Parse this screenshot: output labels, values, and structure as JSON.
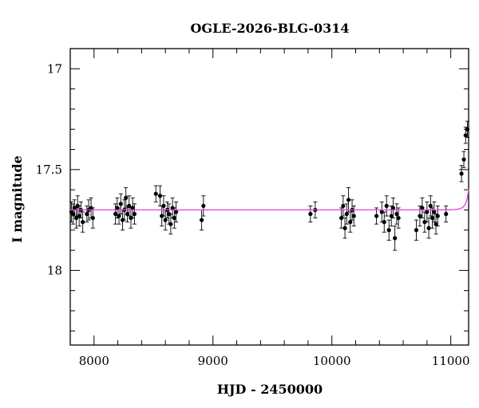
{
  "chart_data": {
    "type": "scatter",
    "title": "OGLE-2026-BLG-0314",
    "xlabel": "HJD - 2450000",
    "ylabel": "I magnitude",
    "xlim": [
      7800,
      11150
    ],
    "ylim": [
      18.37,
      16.9
    ],
    "y_inverted": true,
    "x_ticks": [
      8000,
      9000,
      10000,
      11000
    ],
    "x_tick_labels": [
      "8000",
      "9000",
      "10000",
      "11000"
    ],
    "y_ticks": [
      17,
      17.5,
      18
    ],
    "y_tick_labels": [
      "17",
      "17.5",
      "18"
    ],
    "grid": false,
    "colors": {
      "points": "#000000",
      "model": "#e040e0"
    },
    "series": [
      {
        "kind": "points_with_errorbars",
        "x": [
          7810,
          7825,
          7835,
          7850,
          7862,
          7875,
          7890,
          7905,
          7940,
          7955,
          7975,
          7990,
          8180,
          8195,
          8210,
          8225,
          8240,
          8255,
          8268,
          8280,
          8295,
          8310,
          8325,
          8340,
          8520,
          8555,
          8570,
          8585,
          8600,
          8615,
          8630,
          8645,
          8660,
          8675,
          8690,
          8905,
          8920,
          9820,
          9860,
          10080,
          10095,
          10110,
          10125,
          10140,
          10155,
          10170,
          10185,
          10375,
          10420,
          10440,
          10460,
          10480,
          10500,
          10515,
          10530,
          10545,
          10560,
          10710,
          10740,
          10760,
          10780,
          10800,
          10815,
          10830,
          10845,
          10860,
          10875,
          10890,
          10960,
          11090,
          11110,
          11125,
          11140
        ],
        "y": [
          17.71,
          17.72,
          17.69,
          17.74,
          17.68,
          17.73,
          17.7,
          17.76,
          17.72,
          17.7,
          17.69,
          17.74,
          17.72,
          17.69,
          17.73,
          17.67,
          17.75,
          17.7,
          17.64,
          17.72,
          17.68,
          17.74,
          17.69,
          17.72,
          17.62,
          17.63,
          17.73,
          17.68,
          17.75,
          17.7,
          17.72,
          17.77,
          17.69,
          17.74,
          17.71,
          17.75,
          17.68,
          17.72,
          17.7,
          17.74,
          17.68,
          17.79,
          17.72,
          17.65,
          17.76,
          17.7,
          17.73,
          17.73,
          17.71,
          17.76,
          17.68,
          17.8,
          17.73,
          17.69,
          17.84,
          17.72,
          17.74,
          17.8,
          17.73,
          17.69,
          17.76,
          17.71,
          17.79,
          17.68,
          17.74,
          17.71,
          17.77,
          17.73,
          17.72,
          17.52,
          17.45,
          17.33,
          17.3
        ],
        "err": [
          0.05,
          0.05,
          0.04,
          0.05,
          0.05,
          0.05,
          0.04,
          0.05,
          0.04,
          0.05,
          0.05,
          0.05,
          0.05,
          0.05,
          0.04,
          0.05,
          0.05,
          0.05,
          0.05,
          0.04,
          0.05,
          0.05,
          0.05,
          0.05,
          0.04,
          0.05,
          0.05,
          0.05,
          0.05,
          0.04,
          0.05,
          0.05,
          0.05,
          0.05,
          0.05,
          0.05,
          0.05,
          0.04,
          0.04,
          0.05,
          0.05,
          0.05,
          0.05,
          0.06,
          0.05,
          0.05,
          0.05,
          0.04,
          0.05,
          0.05,
          0.05,
          0.05,
          0.05,
          0.05,
          0.06,
          0.05,
          0.05,
          0.05,
          0.05,
          0.05,
          0.05,
          0.05,
          0.05,
          0.05,
          0.05,
          0.05,
          0.05,
          0.05,
          0.04,
          0.04,
          0.04,
          0.04,
          0.04
        ]
      },
      {
        "kind": "model_curve",
        "baseline_mag": 17.7,
        "t0": 11200,
        "tE": 30,
        "u0": 0.12,
        "x_start": 7800,
        "x_end": 11150
      }
    ]
  }
}
